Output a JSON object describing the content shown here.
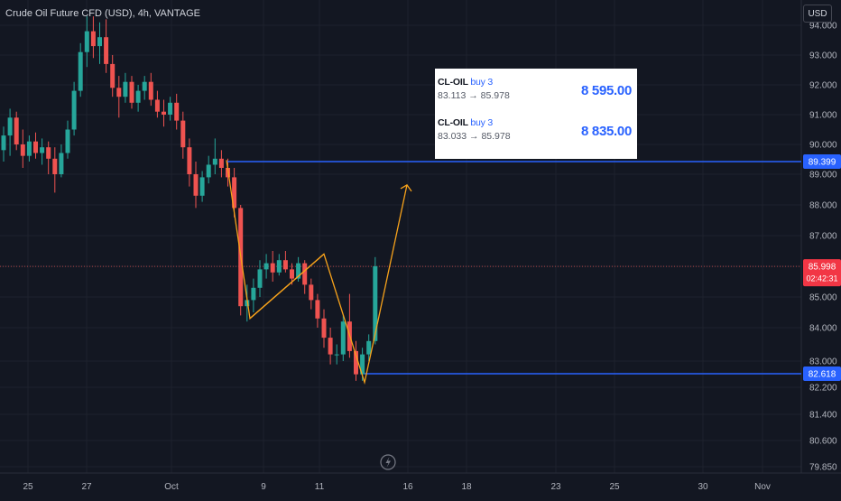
{
  "header": {
    "title": "Crude Oil Future CFD (USD), 4h, VANTAGE",
    "currency_button": "USD"
  },
  "colors": {
    "background": "#131722",
    "bull": "#26a69a",
    "bear": "#ef5350",
    "level_line": "#2962ff",
    "pattern_line": "#f7a21b",
    "grid": "#1e222d",
    "axis_text": "#b2b5be"
  },
  "trades": [
    {
      "symbol": "CL-OIL",
      "side": "buy 3",
      "route": "83.113 → 85.978",
      "amount": "8 595.00"
    },
    {
      "symbol": "CL-OIL",
      "side": "buy 3",
      "route": "83.033 → 85.978",
      "amount": "8 835.00"
    }
  ],
  "icons": {
    "replay": "lightning-icon"
  },
  "chart_data": {
    "type": "candlestick",
    "title": "Crude Oil Future CFD (USD), 4h, VANTAGE",
    "y_ticks": [
      "94.000",
      "93.000",
      "92.000",
      "91.000",
      "90.000",
      "89.000",
      "88.000",
      "87.000",
      "86.000",
      "85.000",
      "84.000",
      "83.000",
      "82.200",
      "81.400",
      "80.600",
      "79.850"
    ],
    "x_ticks": [
      "25",
      "27",
      "Oct",
      "9",
      "11",
      "16",
      "18",
      "23",
      "25",
      "30",
      "Nov"
    ],
    "price_labels": {
      "resistance": "89.399",
      "support": "82.618",
      "last_price": "85.998",
      "countdown": "02:42:31"
    },
    "levels": [
      {
        "name": "resistance",
        "value": 89.399
      },
      {
        "name": "support",
        "value": 82.618
      },
      {
        "name": "last-price",
        "value": 85.998
      }
    ],
    "candles": [
      [
        89.8,
        90.6,
        89.4,
        90.3
      ],
      [
        90.3,
        91.2,
        89.6,
        90.9
      ],
      [
        90.9,
        91.1,
        89.8,
        90.0
      ],
      [
        90.0,
        90.5,
        89.2,
        89.6
      ],
      [
        89.6,
        90.3,
        89.4,
        90.1
      ],
      [
        90.1,
        90.4,
        89.5,
        89.7
      ],
      [
        89.7,
        90.2,
        89.3,
        89.9
      ],
      [
        89.9,
        90.1,
        89.0,
        89.5
      ],
      [
        89.5,
        89.9,
        88.4,
        89.0
      ],
      [
        89.0,
        90.0,
        88.9,
        89.7
      ],
      [
        89.7,
        90.8,
        89.5,
        90.5
      ],
      [
        90.5,
        92.1,
        90.3,
        91.8
      ],
      [
        91.8,
        93.4,
        91.6,
        93.1
      ],
      [
        93.1,
        94.3,
        92.6,
        93.8
      ],
      [
        93.8,
        94.3,
        92.9,
        93.3
      ],
      [
        93.3,
        94.1,
        92.7,
        93.6
      ],
      [
        93.6,
        94.2,
        92.4,
        92.7
      ],
      [
        92.7,
        93.0,
        91.6,
        91.9
      ],
      [
        91.9,
        92.3,
        90.9,
        91.6
      ],
      [
        91.6,
        92.4,
        91.4,
        92.1
      ],
      [
        92.1,
        92.3,
        91.2,
        91.4
      ],
      [
        91.4,
        92.0,
        91.1,
        91.8
      ],
      [
        91.8,
        92.3,
        91.5,
        92.1
      ],
      [
        92.1,
        92.4,
        91.3,
        91.5
      ],
      [
        91.5,
        91.8,
        90.9,
        91.1
      ],
      [
        91.1,
        91.5,
        90.6,
        91.0
      ],
      [
        91.0,
        91.6,
        90.8,
        91.4
      ],
      [
        91.4,
        91.7,
        90.5,
        90.8
      ],
      [
        90.8,
        91.1,
        89.5,
        89.9
      ],
      [
        89.9,
        90.2,
        88.6,
        89.0
      ],
      [
        89.0,
        89.4,
        87.9,
        88.3
      ],
      [
        88.3,
        89.1,
        88.1,
        88.9
      ],
      [
        88.9,
        89.6,
        88.7,
        89.3
      ],
      [
        89.3,
        90.2,
        89.0,
        89.5
      ],
      [
        89.5,
        89.8,
        88.9,
        89.2
      ],
      [
        89.2,
        89.5,
        88.6,
        88.9
      ],
      [
        88.9,
        89.2,
        87.6,
        87.9
      ],
      [
        87.9,
        88.0,
        84.4,
        84.7
      ],
      [
        84.7,
        85.4,
        84.2,
        84.9
      ],
      [
        84.9,
        85.6,
        84.5,
        85.3
      ],
      [
        85.3,
        86.2,
        85.0,
        85.9
      ],
      [
        85.9,
        86.4,
        85.6,
        86.1
      ],
      [
        86.1,
        86.5,
        85.5,
        85.8
      ],
      [
        85.8,
        86.4,
        85.7,
        86.2
      ],
      [
        86.2,
        86.5,
        85.8,
        85.9
      ],
      [
        85.9,
        86.1,
        85.4,
        85.6
      ],
      [
        85.6,
        86.3,
        85.5,
        86.1
      ],
      [
        86.1,
        86.2,
        85.1,
        85.4
      ],
      [
        85.4,
        85.6,
        84.6,
        84.9
      ],
      [
        84.9,
        85.1,
        84.0,
        84.3
      ],
      [
        84.3,
        84.6,
        83.4,
        83.7
      ],
      [
        83.7,
        84.0,
        82.9,
        83.2
      ],
      [
        83.2,
        83.5,
        82.9,
        83.2
      ],
      [
        83.2,
        84.4,
        83.0,
        84.2
      ],
      [
        84.2,
        85.1,
        83.1,
        83.3
      ],
      [
        83.3,
        83.6,
        82.4,
        82.6
      ],
      [
        82.6,
        83.4,
        82.4,
        83.2
      ],
      [
        83.2,
        83.8,
        83.0,
        83.6
      ],
      [
        83.6,
        86.3,
        83.5,
        86.0
      ]
    ]
  }
}
